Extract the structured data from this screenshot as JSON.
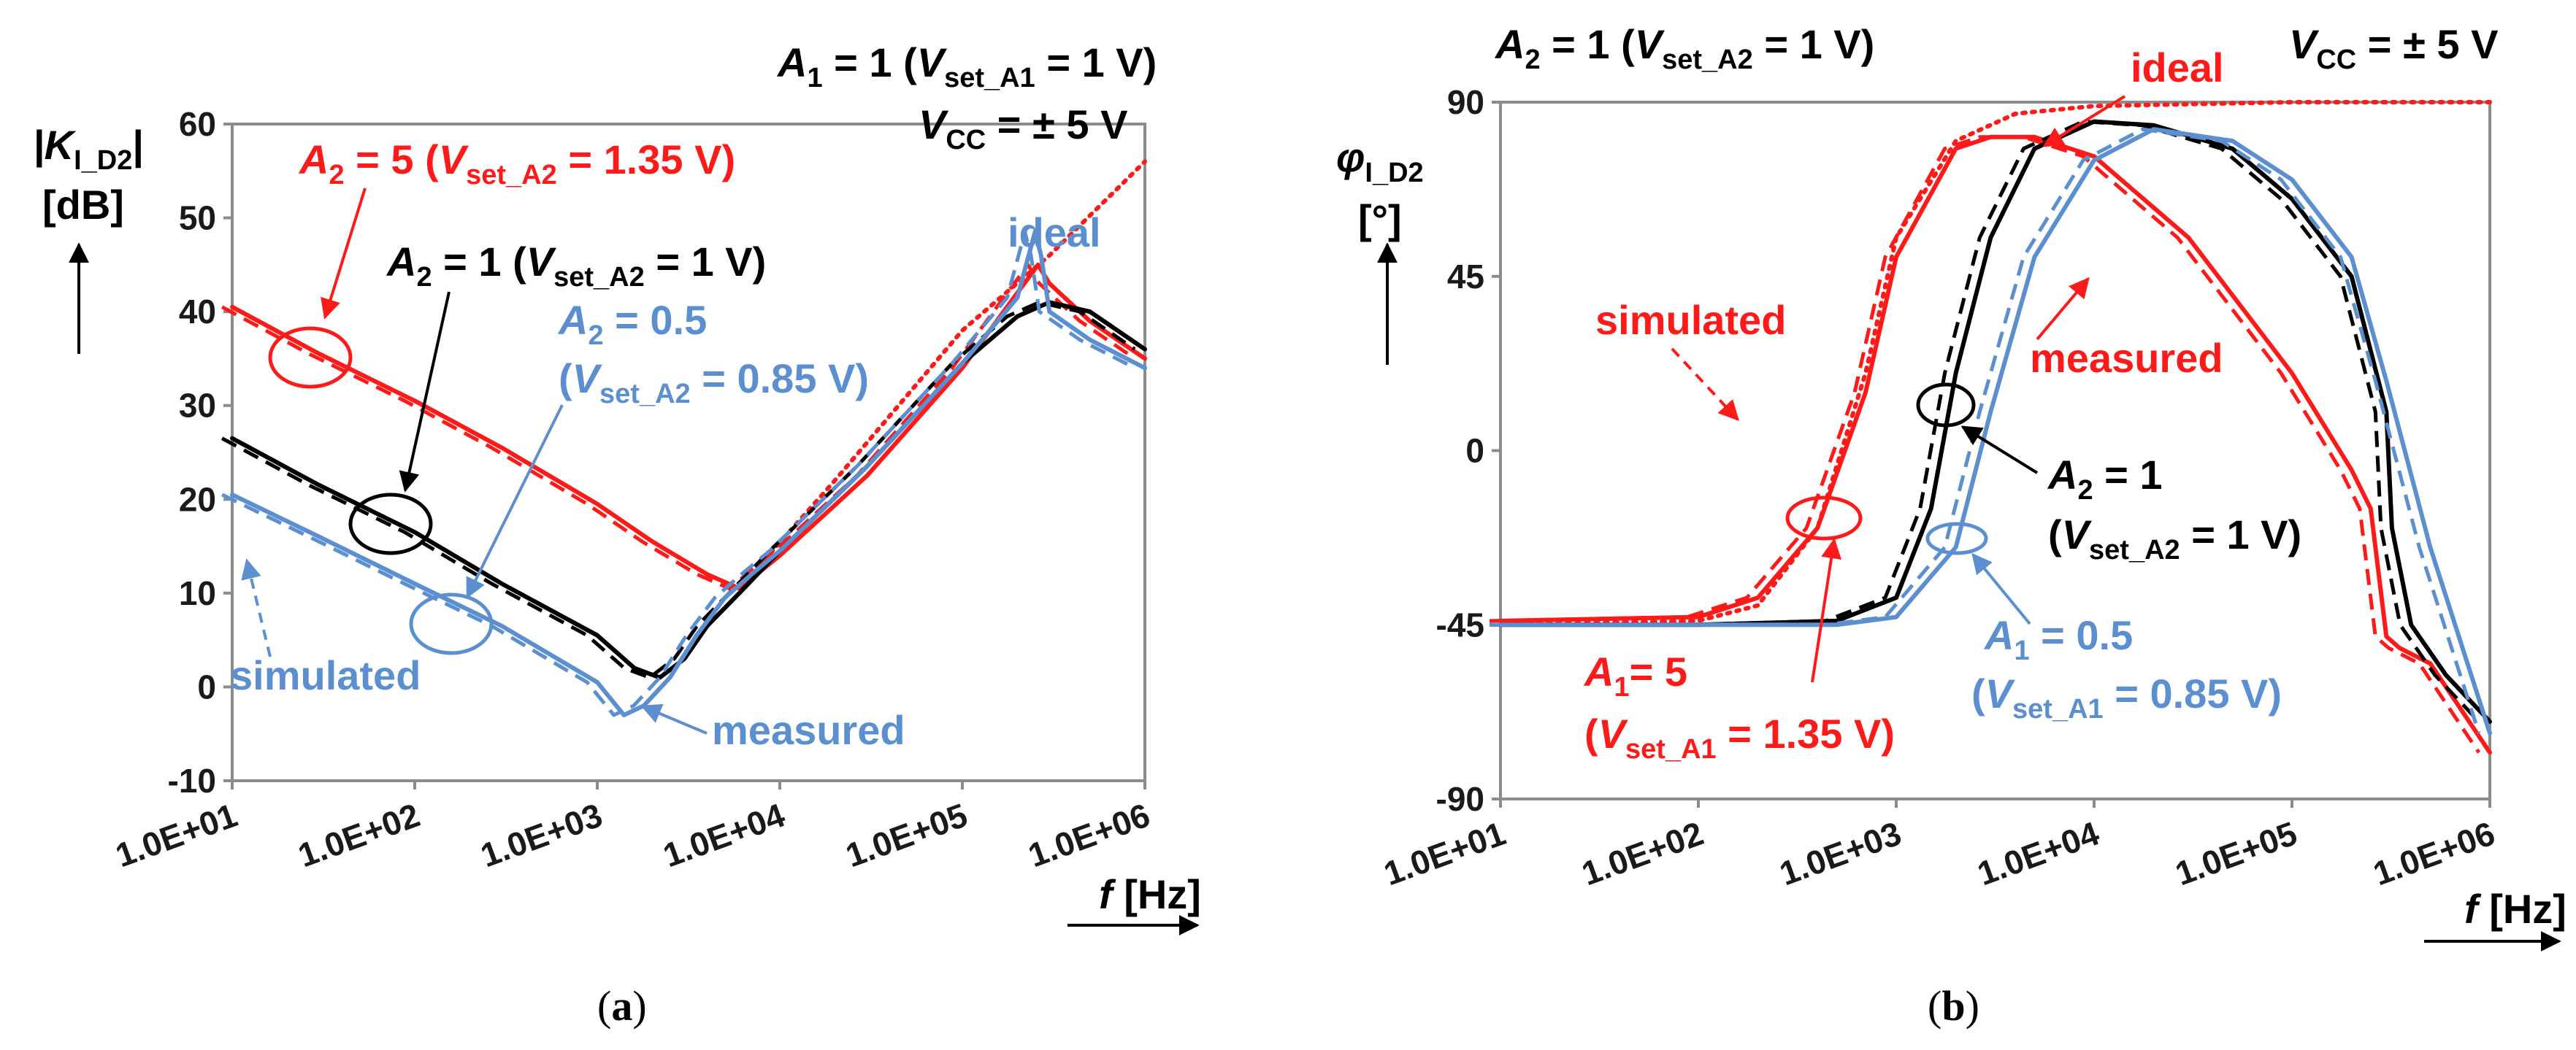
{
  "colors": {
    "red": "#ff1a1a",
    "black": "#000000",
    "blue": "#5b8fd0"
  },
  "panels": {
    "a": {
      "caption_open": "(",
      "caption_letter": "a",
      "caption_close": ")",
      "ylabel_main": "|K",
      "ylabel_sub": "I_D2",
      "ylabel_end": "|",
      "yunit": "[dB]",
      "xlabel_var": "f",
      "xlabel_unit": " [Hz]",
      "cond1_main": "A",
      "cond1_sub1": "1",
      "cond1_mid": " = 1 (",
      "cond1_v": "V",
      "cond1_sub2": "set_A1",
      "cond1_end": " = 1 V)",
      "vcc_v": "V",
      "vcc_sub": "CC",
      "vcc_end": " = ± 5 V",
      "lab_a5_A": "A",
      "lab_a5_sub": "2",
      "lab_a5_mid": " = 5 (",
      "lab_a5_V": "V",
      "lab_a5_vsub": "set_A2",
      "lab_a5_end": " = 1.35 V)",
      "lab_a1_A": "A",
      "lab_a1_sub": "2",
      "lab_a1_mid": " = 1 (",
      "lab_a1_V": "V",
      "lab_a1_vsub": "set_A2",
      "lab_a1_end": " = 1 V)",
      "lab_a05_A": "A",
      "lab_a05_sub": "2",
      "lab_a05_end": " = 0.5",
      "lab_a05_l2_open": "(",
      "lab_a05_l2_V": "V",
      "lab_a05_l2_vsub": "set_A2",
      "lab_a05_l2_end": " = 0.85 V)",
      "ideal": "ideal",
      "simulated": "simulated",
      "measured": "measured"
    },
    "b": {
      "caption_open": "(",
      "caption_letter": "b",
      "caption_close": ")",
      "ylabel_main": "φ",
      "ylabel_sub": "I_D2",
      "yunit": "[°]",
      "xlabel_var": "f",
      "xlabel_unit": " [Hz]",
      "cond_A": "A",
      "cond_sub": "2",
      "cond_mid": " = 1 (",
      "cond_V": "V",
      "cond_vsub": "set_A2",
      "cond_end": " = 1 V)",
      "vcc_v": "V",
      "vcc_sub": "CC",
      "vcc_end": " = ± 5 V",
      "ideal": "ideal",
      "simulated": "simulated",
      "measured": "measured",
      "lab_b1_A": "A",
      "lab_b1_sub": "2",
      "lab_b1_end": " = 1",
      "lab_b1_l2_open": "(",
      "lab_b1_l2_V": "V",
      "lab_b1_l2_vsub": "set_A2",
      "lab_b1_l2_end": " = 1 V)",
      "lab_b05_A": "A",
      "lab_b05_sub": "1",
      "lab_b05_end": " = 0.5",
      "lab_b05_l2_open": "(",
      "lab_b05_l2_V": "V",
      "lab_b05_l2_vsub": "set_A1",
      "lab_b05_l2_end": " = 0.85 V)",
      "lab_b5_A": "A",
      "lab_b5_sub": "1",
      "lab_b5_end": "= 5",
      "lab_b5_l2_open": "(",
      "lab_b5_l2_V": "V",
      "lab_b5_l2_vsub": "set_A1",
      "lab_b5_l2_end": " = 1.35 V)"
    }
  },
  "chart_data": [
    {
      "type": "line",
      "title": "",
      "xlabel": "f [Hz]",
      "ylabel": "|K_I_D2| [dB]",
      "xscale": "log",
      "xlim": [
        10,
        1000000
      ],
      "ylim": [
        -10,
        60
      ],
      "x_tick_labels": [
        "1.0E+01",
        "1.0E+02",
        "1.0E+03",
        "1.0E+04",
        "1.0E+05",
        "1.0E+06"
      ],
      "y_ticks": [
        -10,
        0,
        10,
        20,
        30,
        40,
        50,
        60
      ],
      "series": [
        {
          "name": "ideal",
          "color": "#ff1a1a",
          "dash": "dotted",
          "x": [
            6000,
            20000,
            100000,
            300000,
            1000000
          ],
          "y": [
            10.5,
            22,
            38,
            46,
            56
          ]
        },
        {
          "name": "A2 = 5 (Vset_A2 = 1.35 V) measured",
          "color": "#ff1a1a",
          "dash": "solid",
          "x": [
            10,
            30,
            100,
            300,
            1000,
            2000,
            4000,
            6000,
            10000,
            30000,
            100000,
            200000,
            260000,
            300000,
            500000,
            1000000
          ],
          "y": [
            40.5,
            35.5,
            30.5,
            25.5,
            19.5,
            15.5,
            12,
            10.5,
            14,
            22.5,
            34,
            42,
            45,
            43,
            39,
            35
          ]
        },
        {
          "name": "A2 = 1 (Vset_A2 = 1 V) measured",
          "color": "#000000",
          "dash": "solid",
          "x": [
            10,
            30,
            100,
            300,
            1000,
            1600,
            2200,
            3000,
            4000,
            6000,
            10000,
            30000,
            100000,
            200000,
            300000,
            500000,
            1000000
          ],
          "y": [
            26.5,
            21.5,
            16.5,
            11,
            5.5,
            2,
            1,
            3,
            6.5,
            10,
            14.5,
            23.5,
            34.5,
            39.5,
            41,
            40,
            36
          ]
        },
        {
          "name": "A2 = 0.5 (Vset_A2 = 0.85 V) measured",
          "color": "#5b8fd0",
          "dash": "solid",
          "x": [
            10,
            30,
            100,
            300,
            1000,
            1400,
            1800,
            2500,
            3500,
            5000,
            7000,
            10000,
            30000,
            100000,
            200000,
            250000,
            270000,
            300000,
            500000,
            1000000
          ],
          "y": [
            20.5,
            16,
            11,
            6.5,
            0.5,
            -3,
            -2,
            1,
            5.5,
            9.5,
            12,
            14.5,
            23.5,
            34.5,
            41.5,
            48.5,
            46,
            40,
            37,
            34
          ]
        }
      ]
    },
    {
      "type": "line",
      "title": "",
      "xlabel": "f [Hz]",
      "ylabel": "φ_I_D2 [°]",
      "xscale": "log",
      "xlim": [
        10,
        1000000
      ],
      "ylim": [
        -90,
        90
      ],
      "x_tick_labels": [
        "1.0E+01",
        "1.0E+02",
        "1.0E+03",
        "1.0E+04",
        "1.0E+05",
        "1.0E+06"
      ],
      "y_ticks": [
        -90,
        -45,
        0,
        45,
        90
      ],
      "series": [
        {
          "name": "ideal",
          "color": "#ff1a1a",
          "dash": "dotted",
          "x": [
            10,
            100,
            200,
            400,
            700,
            1000,
            2000,
            4000,
            10000,
            100000,
            1000000
          ],
          "y": [
            -45,
            -44,
            -40,
            -20,
            20,
            55,
            80,
            87,
            89,
            90,
            90
          ]
        },
        {
          "name": "A1 = 5 (Vset_A1 = 1.35 V) measured",
          "color": "#ff1a1a",
          "dash": "solid",
          "x": [
            10,
            100,
            200,
            400,
            700,
            1000,
            2000,
            3000,
            5000,
            10000,
            30000,
            100000,
            200000,
            250000,
            300000,
            350000,
            500000,
            1000000
          ],
          "y": [
            -44,
            -43,
            -38,
            -20,
            15,
            50,
            78,
            81,
            81,
            76,
            55,
            20,
            -5,
            -15,
            -48,
            -51,
            -55,
            -78
          ]
        },
        {
          "name": "A2 = 1 (Vset_A2 = 1 V) measured",
          "color": "#000000",
          "dash": "solid",
          "x": [
            10,
            100,
            500,
            1000,
            1500,
            2000,
            3000,
            5000,
            10000,
            20000,
            50000,
            100000,
            200000,
            300000,
            320000,
            400000,
            600000,
            1000000
          ],
          "y": [
            -45,
            -45,
            -44,
            -38,
            -15,
            20,
            55,
            78,
            85,
            84,
            78,
            65,
            45,
            10,
            -20,
            -45,
            -58,
            -70
          ]
        },
        {
          "name": "A1 = 0.5 (Vset_A1 = 0.85 V) measured",
          "color": "#5b8fd0",
          "dash": "solid",
          "x": [
            10,
            100,
            500,
            1000,
            2000,
            3000,
            5000,
            10000,
            20000,
            50000,
            100000,
            200000,
            300000,
            500000,
            1000000
          ],
          "y": [
            -45,
            -45,
            -45,
            -43,
            -25,
            10,
            50,
            75,
            83,
            80,
            70,
            50,
            18,
            -25,
            -73
          ]
        }
      ]
    }
  ]
}
